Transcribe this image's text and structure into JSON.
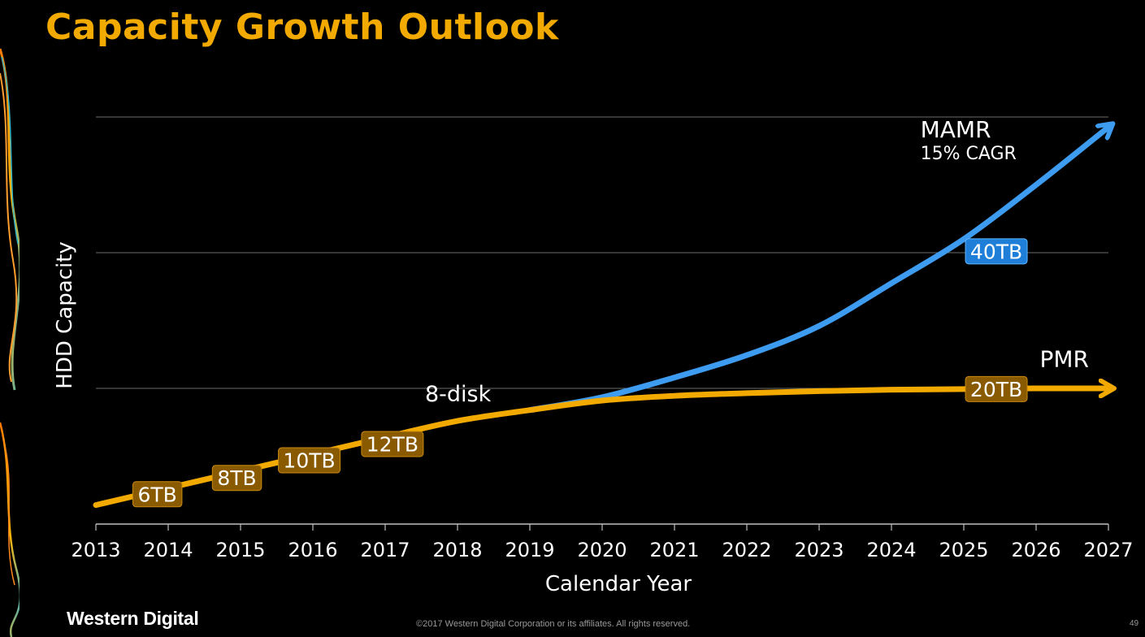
{
  "slide": {
    "title": "Capacity Growth Outlook",
    "logo": "Western Digital",
    "copyright": "©2017 Western Digital Corporation or its affiliates. All rights reserved.",
    "page_number": "49"
  },
  "colors": {
    "title": "#f2a900",
    "pmr_line": "#f2a900",
    "mamr_line": "#3d9cf0",
    "pmr_label_bg": "#8a5a00",
    "mamr_label_bg": "#1f7fd8",
    "grid": "#6b6b6b",
    "text": "#ffffff"
  },
  "chart_data": {
    "type": "line",
    "xlabel": "Calendar Year",
    "ylabel": "HDD Capacity",
    "x_ticks": [
      "2013",
      "2014",
      "2015",
      "2016",
      "2017",
      "2018",
      "2019",
      "2020",
      "2021",
      "2022",
      "2023",
      "2024",
      "2025",
      "2026",
      "2027"
    ],
    "xlim": [
      2013,
      2027
    ],
    "ylim": [
      0,
      60
    ],
    "y_gridlines": [
      20,
      40,
      60
    ],
    "grid": true,
    "series": [
      {
        "name": "PMR",
        "color": "#f2a900",
        "x": [
          2013,
          2014,
          2015,
          2016,
          2017,
          2018,
          2019,
          2020,
          2021,
          2022,
          2023,
          2024,
          2025,
          2026,
          2027
        ],
        "y": [
          2.8,
          5.3,
          7.8,
          10.3,
          12.8,
          15.2,
          16.8,
          18.2,
          18.9,
          19.3,
          19.6,
          19.8,
          19.9,
          20.0,
          20.0
        ]
      },
      {
        "name": "MAMR",
        "color": "#3d9cf0",
        "x": [
          2019,
          2020,
          2021,
          2022,
          2023,
          2024,
          2025,
          2026,
          2027
        ],
        "y": [
          16.8,
          18.7,
          21.6,
          24.9,
          29.2,
          35.5,
          42.0,
          50.0,
          58.5
        ]
      }
    ],
    "point_labels": [
      {
        "text": "6TB",
        "series": "PMR",
        "x": 2013.85,
        "y": 4.4
      },
      {
        "text": "8TB",
        "series": "PMR",
        "x": 2014.95,
        "y": 6.8
      },
      {
        "text": "10TB",
        "series": "PMR",
        "x": 2015.95,
        "y": 9.4
      },
      {
        "text": "12TB",
        "series": "PMR",
        "x": 2017.1,
        "y": 11.8
      },
      {
        "text": "20TB",
        "series": "PMR",
        "x": 2025.45,
        "y": 19.9
      },
      {
        "text": "40TB",
        "series": "MAMR",
        "x": 2025.45,
        "y": 40.2
      }
    ],
    "annotations": [
      {
        "text": "8-disk",
        "x": 2017.55,
        "y": 18.1,
        "size": 27
      },
      {
        "text": "MAMR",
        "x": 2024.4,
        "y": 57.0,
        "size": 28
      },
      {
        "text": "15% CAGR",
        "x": 2024.4,
        "y": 53.8,
        "size": 22
      },
      {
        "text": "PMR",
        "x": 2026.05,
        "y": 23.2,
        "size": 28
      }
    ]
  }
}
